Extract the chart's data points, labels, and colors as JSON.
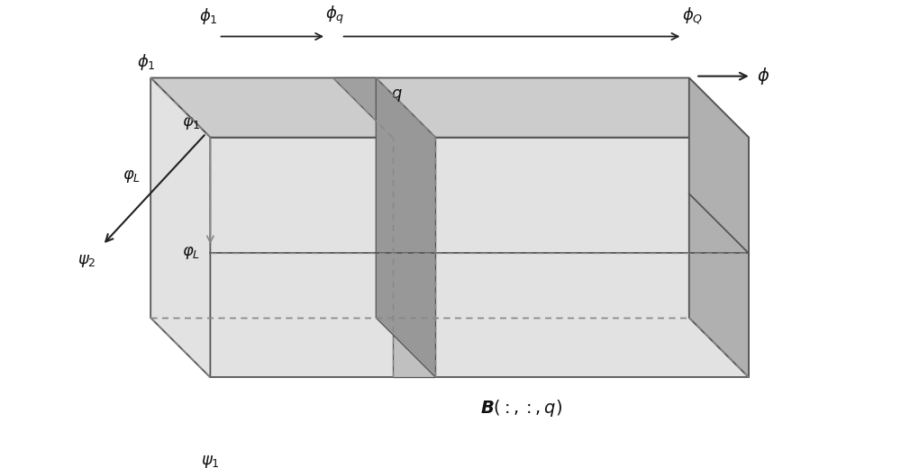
{
  "bg_color": "#ffffff",
  "face_top_color": "#cccccc",
  "face_front_color": "#e2e2e2",
  "face_right_color": "#b0b0b0",
  "slice_front_color": "#c0c0c0",
  "slice_top_color": "#a0a0a0",
  "slice_right_color": "#989898",
  "edge_color": "#555555",
  "dashed_color": "#888888",
  "arrow_color": "#222222",
  "text_color": "#111111"
}
